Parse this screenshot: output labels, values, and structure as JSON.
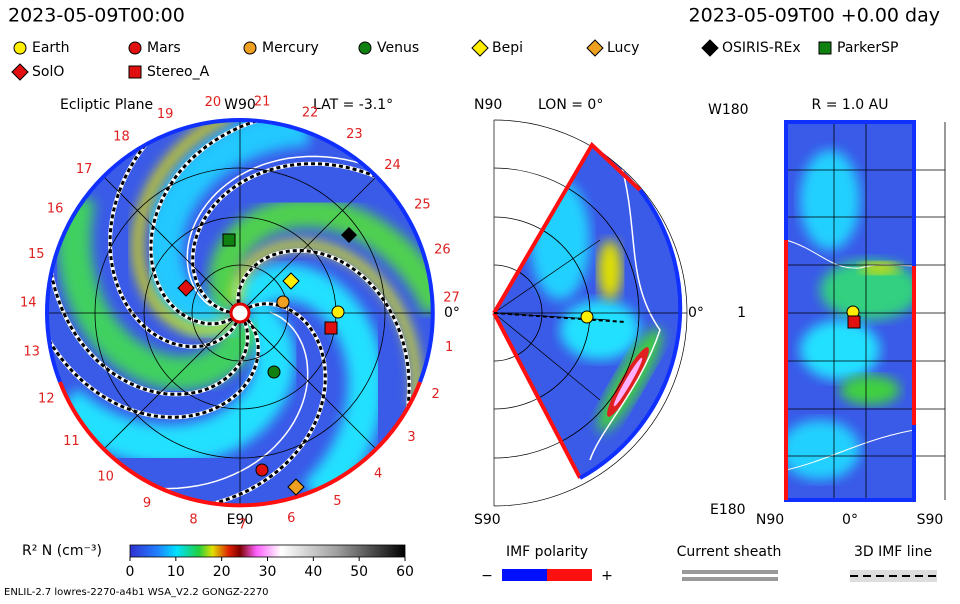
{
  "header": {
    "time": "2023-05-09T00:00",
    "elapsed": "2023-05-09T00 +0.00 day"
  },
  "legend": [
    {
      "label": "Earth",
      "marker": "circle",
      "color": "#ffee00"
    },
    {
      "label": "Mars",
      "marker": "circle",
      "color": "#e01010"
    },
    {
      "label": "Mercury",
      "marker": "circle",
      "color": "#f0a020"
    },
    {
      "label": "Venus",
      "marker": "circle",
      "color": "#108010"
    },
    {
      "label": "Bepi",
      "marker": "diamond",
      "color": "#ffee00"
    },
    {
      "label": "Lucy",
      "marker": "diamond",
      "color": "#f0a020"
    },
    {
      "label": "OSIRIS-REx",
      "marker": "diamond",
      "color": "#000000"
    },
    {
      "label": "ParkerSP",
      "marker": "square",
      "color": "#108010"
    },
    {
      "label": "SolO",
      "marker": "diamond",
      "color": "#e01010"
    },
    {
      "label": "Stereo_A",
      "marker": "square",
      "color": "#e01010"
    }
  ],
  "ecliptic": {
    "title": "Ecliptic Plane",
    "top": "W90",
    "bottom": "E90",
    "lat": "LAT = -3.1°",
    "right": "0°",
    "day_labels": [
      "1",
      "2",
      "3",
      "4",
      "5",
      "6",
      "7",
      "8",
      "9",
      "10",
      "11",
      "12",
      "13",
      "14",
      "15",
      "16",
      "17",
      "18",
      "19",
      "20",
      "21",
      "22",
      "23",
      "24",
      "25",
      "26",
      "27"
    ]
  },
  "meridional": {
    "top": "N90",
    "lon": "LON = 0°",
    "bottom": "S90",
    "right": "0°"
  },
  "radial": {
    "top": "W180",
    "title": "R = 1.0 AU",
    "bottom": "E180",
    "left": "1",
    "x_labels": [
      "N90",
      "0°",
      "S90"
    ]
  },
  "colorbar": {
    "label": "R² N (cm⁻³)",
    "lim": [
      0,
      60
    ],
    "ticks": [
      0,
      10,
      20,
      30,
      40,
      50,
      60
    ]
  },
  "imf": {
    "title": "IMF polarity",
    "minus": "−",
    "plus": "+"
  },
  "sheath": "Current sheath",
  "imf_line": "3D IMF line",
  "footer": "ENLIL-2.7 lowres-2270-a4b1 WSA_V2.2 GONGZ-2270"
}
